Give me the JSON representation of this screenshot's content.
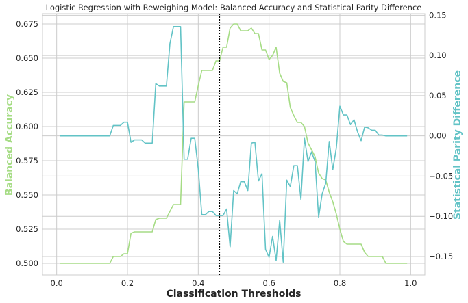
{
  "chart_data": {
    "type": "line",
    "title": "Logistic Regression with Reweighing Model: Balanced Accuracy and Statistical Parity Difference",
    "xlabel": "Classification Thresholds",
    "ylabel": "Balanced Accuracy",
    "ylabel_right": "Statistical Parity Difference",
    "xlim": [
      -0.04,
      1.04
    ],
    "ylim": [
      0.4915,
      0.6825
    ],
    "ylim_right": [
      -0.173,
      0.152
    ],
    "x_ticks": [
      0.0,
      0.2,
      0.4,
      0.6,
      0.8,
      1.0
    ],
    "x_tick_labels": [
      "0.0",
      "0.2",
      "0.4",
      "0.6",
      "0.8",
      "1.0"
    ],
    "y_ticks": [
      0.5,
      0.525,
      0.55,
      0.575,
      0.6,
      0.625,
      0.65,
      0.675
    ],
    "y_tick_labels": [
      "0.500",
      "0.525",
      "0.550",
      "0.575",
      "0.600",
      "0.625",
      "0.650",
      "0.675"
    ],
    "y_ticks_right": [
      -0.15,
      -0.1,
      -0.05,
      0.0,
      0.05,
      0.1,
      0.15
    ],
    "y_tick_labels_right": [
      "−0.15",
      "−0.10",
      "−0.05",
      "0.00",
      "0.05",
      "0.10",
      "0.15"
    ],
    "grid": true,
    "colors": {
      "balanced_accuracy": "#a6dc85",
      "parity": "#62c3c6",
      "threshold_line": "#000000",
      "ylabel_left": "#a6dc85",
      "ylabel_right": "#62c3c6"
    },
    "vertical_line": {
      "x": 0.46,
      "style": "dotted"
    },
    "series": [
      {
        "axis": "left",
        "x": [
          0.01,
          0.02,
          0.03,
          0.04,
          0.05,
          0.06,
          0.07,
          0.08,
          0.09,
          0.1,
          0.11,
          0.12,
          0.13,
          0.14,
          0.15,
          0.16,
          0.17,
          0.18,
          0.19,
          0.2,
          0.21,
          0.22,
          0.23,
          0.24,
          0.25,
          0.26,
          0.27,
          0.28,
          0.29,
          0.3,
          0.31,
          0.32,
          0.33,
          0.34,
          0.35,
          0.36,
          0.37,
          0.38,
          0.39,
          0.4,
          0.41,
          0.42,
          0.43,
          0.44,
          0.45,
          0.46,
          0.47,
          0.48,
          0.49,
          0.5,
          0.51,
          0.52,
          0.53,
          0.54,
          0.55,
          0.56,
          0.57,
          0.58,
          0.59,
          0.6,
          0.61,
          0.62,
          0.63,
          0.64,
          0.65,
          0.66,
          0.67,
          0.68,
          0.69,
          0.7,
          0.71,
          0.72,
          0.73,
          0.74,
          0.75,
          0.76,
          0.77,
          0.78,
          0.79,
          0.8,
          0.81,
          0.82,
          0.83,
          0.84,
          0.85,
          0.86,
          0.87,
          0.88,
          0.89,
          0.9,
          0.91,
          0.92,
          0.93,
          0.94,
          0.95,
          0.96,
          0.97,
          0.98,
          0.99
        ],
        "values": [
          0.5,
          0.5,
          0.5,
          0.5,
          0.5,
          0.5,
          0.5,
          0.5,
          0.5,
          0.5,
          0.5,
          0.5,
          0.5,
          0.5,
          0.5,
          0.505,
          0.505,
          0.505,
          0.507,
          0.507,
          0.522,
          0.523,
          0.523,
          0.523,
          0.523,
          0.523,
          0.523,
          0.532,
          0.533,
          0.533,
          0.533,
          0.538,
          0.543,
          0.543,
          0.543,
          0.618,
          0.618,
          0.618,
          0.618,
          0.63,
          0.641,
          0.641,
          0.641,
          0.641,
          0.648,
          0.648,
          0.658,
          0.658,
          0.672,
          0.675,
          0.675,
          0.67,
          0.67,
          0.67,
          0.672,
          0.668,
          0.668,
          0.656,
          0.656,
          0.649,
          0.652,
          0.658,
          0.639,
          0.633,
          0.632,
          0.614,
          0.608,
          0.603,
          0.603,
          0.6,
          0.588,
          0.583,
          0.578,
          0.566,
          0.562,
          0.561,
          0.552,
          0.545,
          0.536,
          0.525,
          0.516,
          0.514,
          0.514,
          0.514,
          0.514,
          0.514,
          0.508,
          0.505,
          0.505,
          0.505,
          0.505,
          0.505,
          0.5,
          0.5,
          0.5,
          0.5,
          0.5,
          0.5,
          0.5
        ]
      },
      {
        "axis": "right",
        "x": [
          0.01,
          0.02,
          0.03,
          0.04,
          0.05,
          0.06,
          0.07,
          0.08,
          0.09,
          0.1,
          0.11,
          0.12,
          0.13,
          0.14,
          0.15,
          0.16,
          0.17,
          0.18,
          0.19,
          0.2,
          0.21,
          0.22,
          0.23,
          0.24,
          0.25,
          0.26,
          0.27,
          0.28,
          0.29,
          0.3,
          0.31,
          0.32,
          0.33,
          0.34,
          0.35,
          0.36,
          0.37,
          0.38,
          0.39,
          0.4,
          0.41,
          0.42,
          0.43,
          0.44,
          0.45,
          0.46,
          0.47,
          0.48,
          0.49,
          0.5,
          0.51,
          0.52,
          0.53,
          0.54,
          0.55,
          0.56,
          0.57,
          0.58,
          0.59,
          0.6,
          0.61,
          0.62,
          0.63,
          0.64,
          0.65,
          0.66,
          0.67,
          0.68,
          0.69,
          0.7,
          0.71,
          0.72,
          0.73,
          0.74,
          0.75,
          0.76,
          0.77,
          0.78,
          0.79,
          0.8,
          0.81,
          0.82,
          0.83,
          0.84,
          0.85,
          0.86,
          0.87,
          0.88,
          0.89,
          0.9,
          0.91,
          0.92,
          0.93,
          0.94,
          0.95,
          0.96,
          0.97,
          0.98,
          0.99
        ],
        "values": [
          0.0,
          0.0,
          0.0,
          0.0,
          0.0,
          0.0,
          0.0,
          0.0,
          0.0,
          0.0,
          0.0,
          0.0,
          0.0,
          0.0,
          0.0,
          0.013,
          0.013,
          0.013,
          0.017,
          0.017,
          -0.008,
          -0.005,
          -0.005,
          -0.005,
          -0.009,
          -0.009,
          -0.009,
          0.065,
          0.062,
          0.062,
          0.062,
          0.115,
          0.136,
          0.136,
          0.136,
          -0.029,
          -0.029,
          -0.003,
          -0.003,
          -0.041,
          -0.098,
          -0.098,
          -0.094,
          -0.094,
          -0.099,
          -0.099,
          -0.099,
          -0.091,
          -0.138,
          -0.068,
          -0.072,
          -0.057,
          -0.057,
          -0.068,
          -0.009,
          -0.008,
          -0.056,
          -0.047,
          -0.141,
          -0.151,
          -0.125,
          -0.155,
          -0.105,
          -0.157,
          -0.055,
          -0.063,
          -0.037,
          -0.037,
          -0.079,
          -0.003,
          -0.032,
          -0.02,
          -0.032,
          -0.101,
          -0.072,
          -0.059,
          -0.007,
          -0.042,
          -0.015,
          0.037,
          0.026,
          0.026,
          0.014,
          0.02,
          0.005,
          -0.006,
          0.011,
          0.01,
          0.007,
          0.007,
          0.001,
          0.001,
          0.0,
          0.0,
          0.0,
          0.0,
          0.0,
          0.0,
          0.0
        ]
      }
    ]
  }
}
